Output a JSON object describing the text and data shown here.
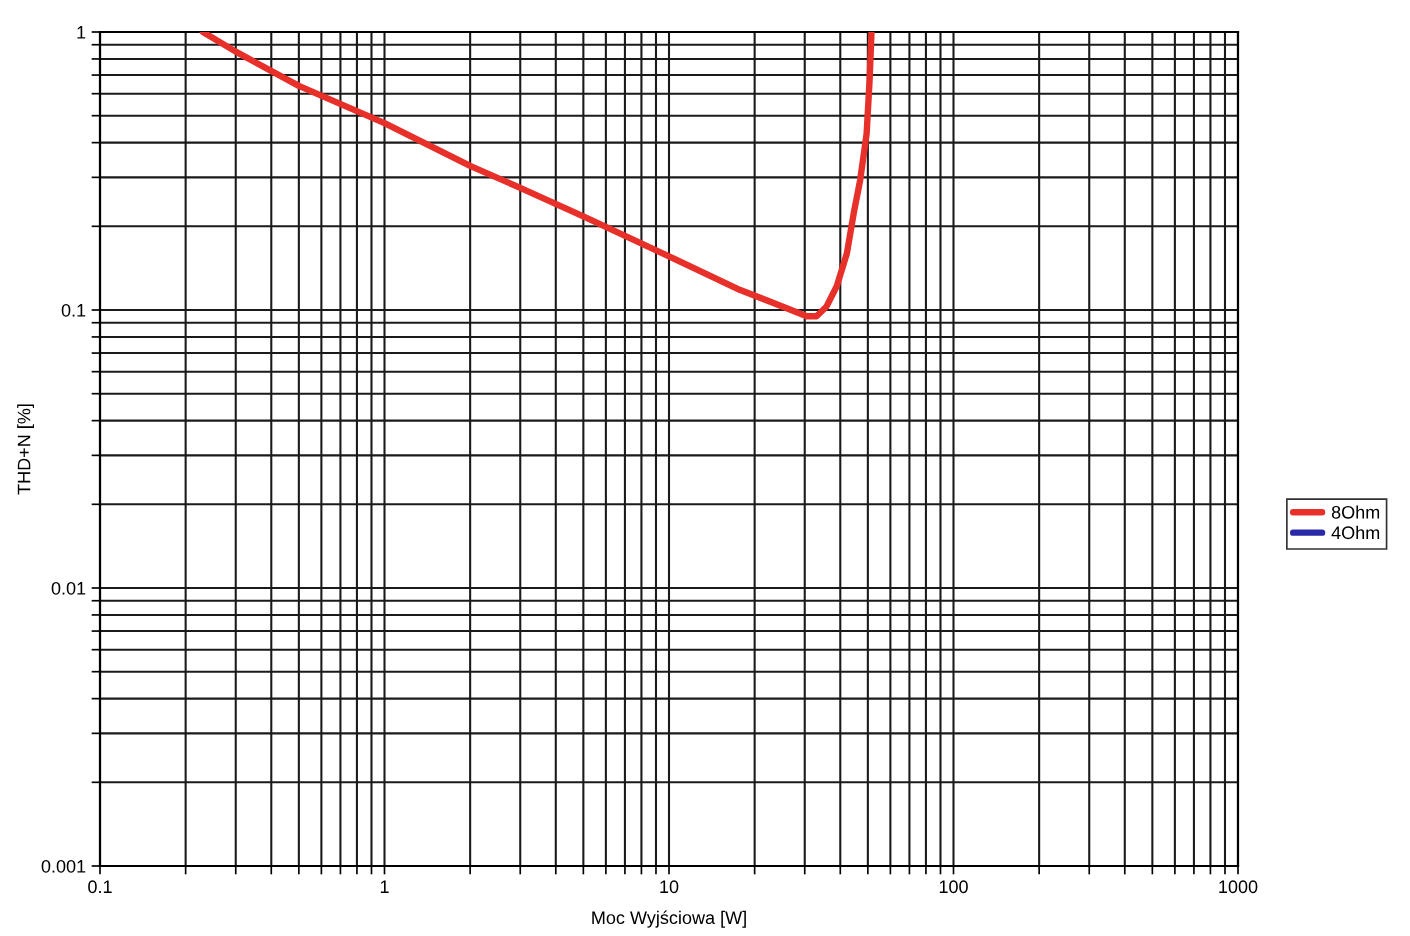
{
  "chart_data": {
    "type": "line",
    "xlabel": "Moc Wyjściowa [W]",
    "ylabel": "THD+N [%]",
    "log": "xy",
    "grid": true,
    "legend": "right",
    "xlim": [
      0.1,
      1000
    ],
    "ylim": [
      0.001,
      1
    ],
    "xticks": [
      0.1,
      {
        "value": 0.2,
        "label": null
      },
      {
        "value": 0.3,
        "label": null
      },
      {
        "value": 0.4,
        "label": null
      },
      {
        "value": 0.5,
        "label": null
      },
      {
        "value": 0.6,
        "label": null
      },
      {
        "value": 0.7,
        "label": null
      },
      {
        "value": 0.8,
        "label": null
      },
      {
        "value": 0.9,
        "label": null
      },
      1,
      {
        "value": 2,
        "label": null
      },
      {
        "value": 3,
        "label": null
      },
      {
        "value": 4,
        "label": null
      },
      {
        "value": 5,
        "label": null
      },
      {
        "value": 6,
        "label": null
      },
      {
        "value": 7,
        "label": null
      },
      {
        "value": 8,
        "label": null
      },
      {
        "value": 9,
        "label": null
      },
      10,
      {
        "value": 20,
        "label": null
      },
      {
        "value": 30,
        "label": null
      },
      {
        "value": 40,
        "label": null
      },
      {
        "value": 50,
        "label": null
      },
      {
        "value": 60,
        "label": null
      },
      {
        "value": 70,
        "label": null
      },
      {
        "value": 80,
        "label": null
      },
      {
        "value": 90,
        "label": null
      },
      100,
      {
        "value": 200,
        "label": null
      },
      {
        "value": 300,
        "label": null
      },
      {
        "value": 400,
        "label": null
      },
      {
        "value": 500,
        "label": null
      },
      {
        "value": 600,
        "label": null
      },
      {
        "value": 700,
        "label": null
      },
      {
        "value": 800,
        "label": null
      },
      {
        "value": 900,
        "label": null
      },
      1000
    ],
    "yticks": [
      0.001,
      {
        "value": 0.002,
        "label": null
      },
      {
        "value": 0.003,
        "label": null
      },
      {
        "value": 0.004,
        "label": null
      },
      {
        "value": 0.005,
        "label": null
      },
      {
        "value": 0.006,
        "label": null
      },
      {
        "value": 0.007,
        "label": null
      },
      {
        "value": 0.008,
        "label": null
      },
      {
        "value": 0.009,
        "label": null
      },
      0.01,
      {
        "value": 0.02,
        "label": null
      },
      {
        "value": 0.03,
        "label": null
      },
      {
        "value": 0.04,
        "label": null
      },
      {
        "value": 0.05,
        "label": null
      },
      {
        "value": 0.06,
        "label": null
      },
      {
        "value": 0.07,
        "label": null
      },
      {
        "value": 0.08,
        "label": null
      },
      {
        "value": 0.09,
        "label": null
      },
      0.1,
      {
        "value": 0.2,
        "label": null
      },
      {
        "value": 0.3,
        "label": null
      },
      {
        "value": 0.4,
        "label": null
      },
      {
        "value": 0.5,
        "label": null
      },
      {
        "value": 0.6,
        "label": null
      },
      {
        "value": 0.7,
        "label": null
      },
      {
        "value": 0.8,
        "label": null
      },
      {
        "value": 0.9,
        "label": null
      },
      1
    ],
    "x": [
      0.23,
      0.3,
      0.5,
      1,
      2,
      3,
      5,
      10,
      17.8,
      23.3,
      30.5,
      33,
      35.8,
      38.9,
      42.2,
      44.6,
      47,
      49.5,
      50.7,
      51.5
    ],
    "series": [
      {
        "name": "8Ohm",
        "color": "#e8302a",
        "values": [
          1.0,
          0.85,
          0.64,
          0.47,
          0.33,
          0.275,
          0.217,
          0.156,
          0.118,
          0.106,
          0.095,
          0.095,
          0.103,
          0.122,
          0.16,
          0.223,
          0.294,
          0.43,
          0.67,
          1.0
        ]
      },
      {
        "name": "4Ohm",
        "color": "#2a2aa8",
        "values": [
          null,
          null,
          null,
          null,
          null,
          null,
          null,
          null,
          null,
          null,
          null,
          null,
          null,
          null,
          null,
          null,
          null,
          null,
          null,
          null
        ]
      }
    ]
  }
}
